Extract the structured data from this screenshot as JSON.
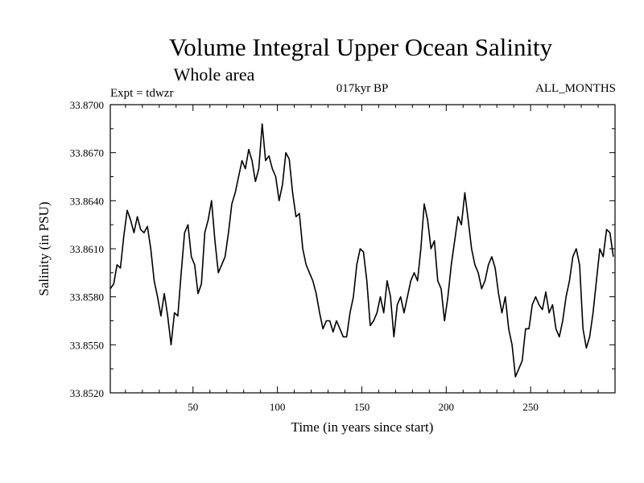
{
  "chart_data": {
    "type": "line",
    "title": "Volume Integral Upper Ocean Salinity",
    "subtitle": "Whole area",
    "expt_label": "Expt = tdwzr",
    "period_label": "017kyr BP",
    "months_label": "ALL_MONTHS",
    "xlabel": "Time (in years since start)",
    "ylabel": "Salinity (in PSU)",
    "xlim": [
      1,
      300
    ],
    "ylim": [
      33.852,
      33.87
    ],
    "x_ticks": [
      50,
      100,
      150,
      200,
      250
    ],
    "x_tick_labels": [
      "50",
      "100",
      "150",
      "200",
      "250"
    ],
    "y_ticks": [
      33.852,
      33.855,
      33.858,
      33.861,
      33.864,
      33.867,
      33.87
    ],
    "y_tick_labels": [
      "33.8520",
      "33.8550",
      "33.8580",
      "33.8610",
      "33.8640",
      "33.8670",
      "33.8700"
    ],
    "grid": false,
    "series": [
      {
        "color": "#000000",
        "x": [
          1,
          3,
          5,
          7,
          9,
          11,
          13,
          15,
          17,
          19,
          21,
          23,
          25,
          27,
          29,
          31,
          33,
          35,
          37,
          39,
          41,
          43,
          45,
          47,
          49,
          51,
          53,
          55,
          57,
          59,
          61,
          63,
          65,
          67,
          69,
          71,
          73,
          75,
          77,
          79,
          81,
          83,
          85,
          87,
          89,
          91,
          93,
          95,
          97,
          99,
          101,
          103,
          105,
          107,
          109,
          111,
          113,
          115,
          117,
          119,
          121,
          123,
          125,
          127,
          129,
          131,
          133,
          135,
          137,
          139,
          141,
          143,
          145,
          147,
          149,
          151,
          153,
          155,
          157,
          159,
          161,
          163,
          165,
          167,
          169,
          171,
          173,
          175,
          177,
          179,
          181,
          183,
          185,
          187,
          189,
          191,
          193,
          195,
          197,
          199,
          201,
          203,
          205,
          207,
          209,
          211,
          213,
          215,
          217,
          219,
          221,
          223,
          225,
          227,
          229,
          231,
          233,
          235,
          237,
          239,
          241,
          243,
          245,
          247,
          249,
          251,
          253,
          255,
          257,
          259,
          261,
          263,
          265,
          267,
          269,
          271,
          273,
          275,
          277,
          279,
          281,
          283,
          285,
          287,
          289,
          291,
          293,
          295,
          297,
          299
        ],
        "y": [
          33.8585,
          33.8588,
          33.86,
          33.8598,
          33.8618,
          33.8634,
          33.8628,
          33.862,
          33.863,
          33.8622,
          33.862,
          33.8624,
          33.861,
          33.859,
          33.858,
          33.8568,
          33.8582,
          33.8568,
          33.855,
          33.857,
          33.8568,
          33.8595,
          33.862,
          33.8625,
          33.8605,
          33.86,
          33.8582,
          33.8588,
          33.862,
          33.8628,
          33.864,
          33.8615,
          33.8595,
          33.86,
          33.8605,
          33.862,
          33.8638,
          33.8645,
          33.8655,
          33.8665,
          33.866,
          33.8672,
          33.8665,
          33.8652,
          33.866,
          33.8688,
          33.8665,
          33.8668,
          33.866,
          33.8655,
          33.864,
          33.865,
          33.867,
          33.8666,
          33.8645,
          33.863,
          33.8632,
          33.861,
          33.86,
          33.8595,
          33.859,
          33.8582,
          33.857,
          33.856,
          33.8565,
          33.8565,
          33.8558,
          33.8565,
          33.856,
          33.8555,
          33.8555,
          33.857,
          33.858,
          33.86,
          33.861,
          33.8608,
          33.859,
          33.8562,
          33.8565,
          33.857,
          33.858,
          33.857,
          33.859,
          33.858,
          33.8555,
          33.8575,
          33.858,
          33.857,
          33.858,
          33.859,
          33.8595,
          33.859,
          33.861,
          33.8638,
          33.8628,
          33.861,
          33.8615,
          33.859,
          33.8585,
          33.8565,
          33.858,
          33.86,
          33.8615,
          33.863,
          33.8625,
          33.8645,
          33.8628,
          33.861,
          33.86,
          33.8595,
          33.8585,
          33.859,
          33.86,
          33.8605,
          33.8598,
          33.8582,
          33.857,
          33.858,
          33.856,
          33.855,
          33.853,
          33.8535,
          33.854,
          33.856,
          33.856,
          33.8575,
          33.858,
          33.8575,
          33.8572,
          33.8583,
          33.857,
          33.8575,
          33.856,
          33.8555,
          33.8565,
          33.858,
          33.859,
          33.8605,
          33.861,
          33.86,
          33.856,
          33.8548,
          33.8555,
          33.857,
          33.859,
          33.861,
          33.8605,
          33.8622,
          33.862,
          33.8605
        ]
      }
    ]
  }
}
